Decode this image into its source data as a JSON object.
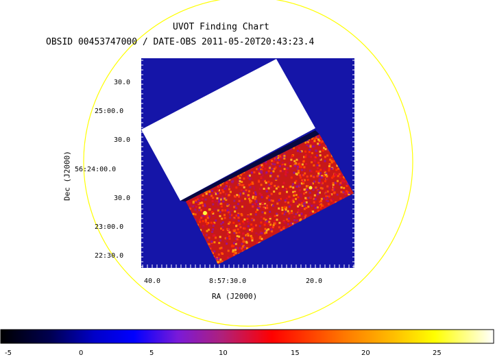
{
  "title": "UVOT Finding Chart",
  "subtitle": "OBSID 00453747000 / DATE-OBS 2011-05-20T20:43:23.4",
  "x_axis": {
    "label": "RA (J2000)",
    "ticks": [
      "40.0",
      "8:57:30.0",
      "20.0"
    ]
  },
  "y_axis": {
    "label": "Dec (J2000)",
    "ticks": [
      "30.0",
      "25:00.0",
      "30.0",
      "56:24:00.0",
      "30.0",
      "23:00.0",
      "22:30.0"
    ]
  },
  "colorbar": {
    "ticks": [
      "-5",
      "0",
      "5",
      "10",
      "15",
      "20",
      "25"
    ],
    "range": [
      -6,
      28.5
    ],
    "stops": [
      "#000000",
      "#000070",
      "#0000ff",
      "#8a1ad0",
      "#ff0000",
      "#ffb000",
      "#ffff00",
      "#ffffff"
    ]
  },
  "colors": {
    "background_field": "#1515a8",
    "circle": "#ffff00",
    "exposure_mask": "#ffffff",
    "tick_marks": "#ffffff"
  }
}
